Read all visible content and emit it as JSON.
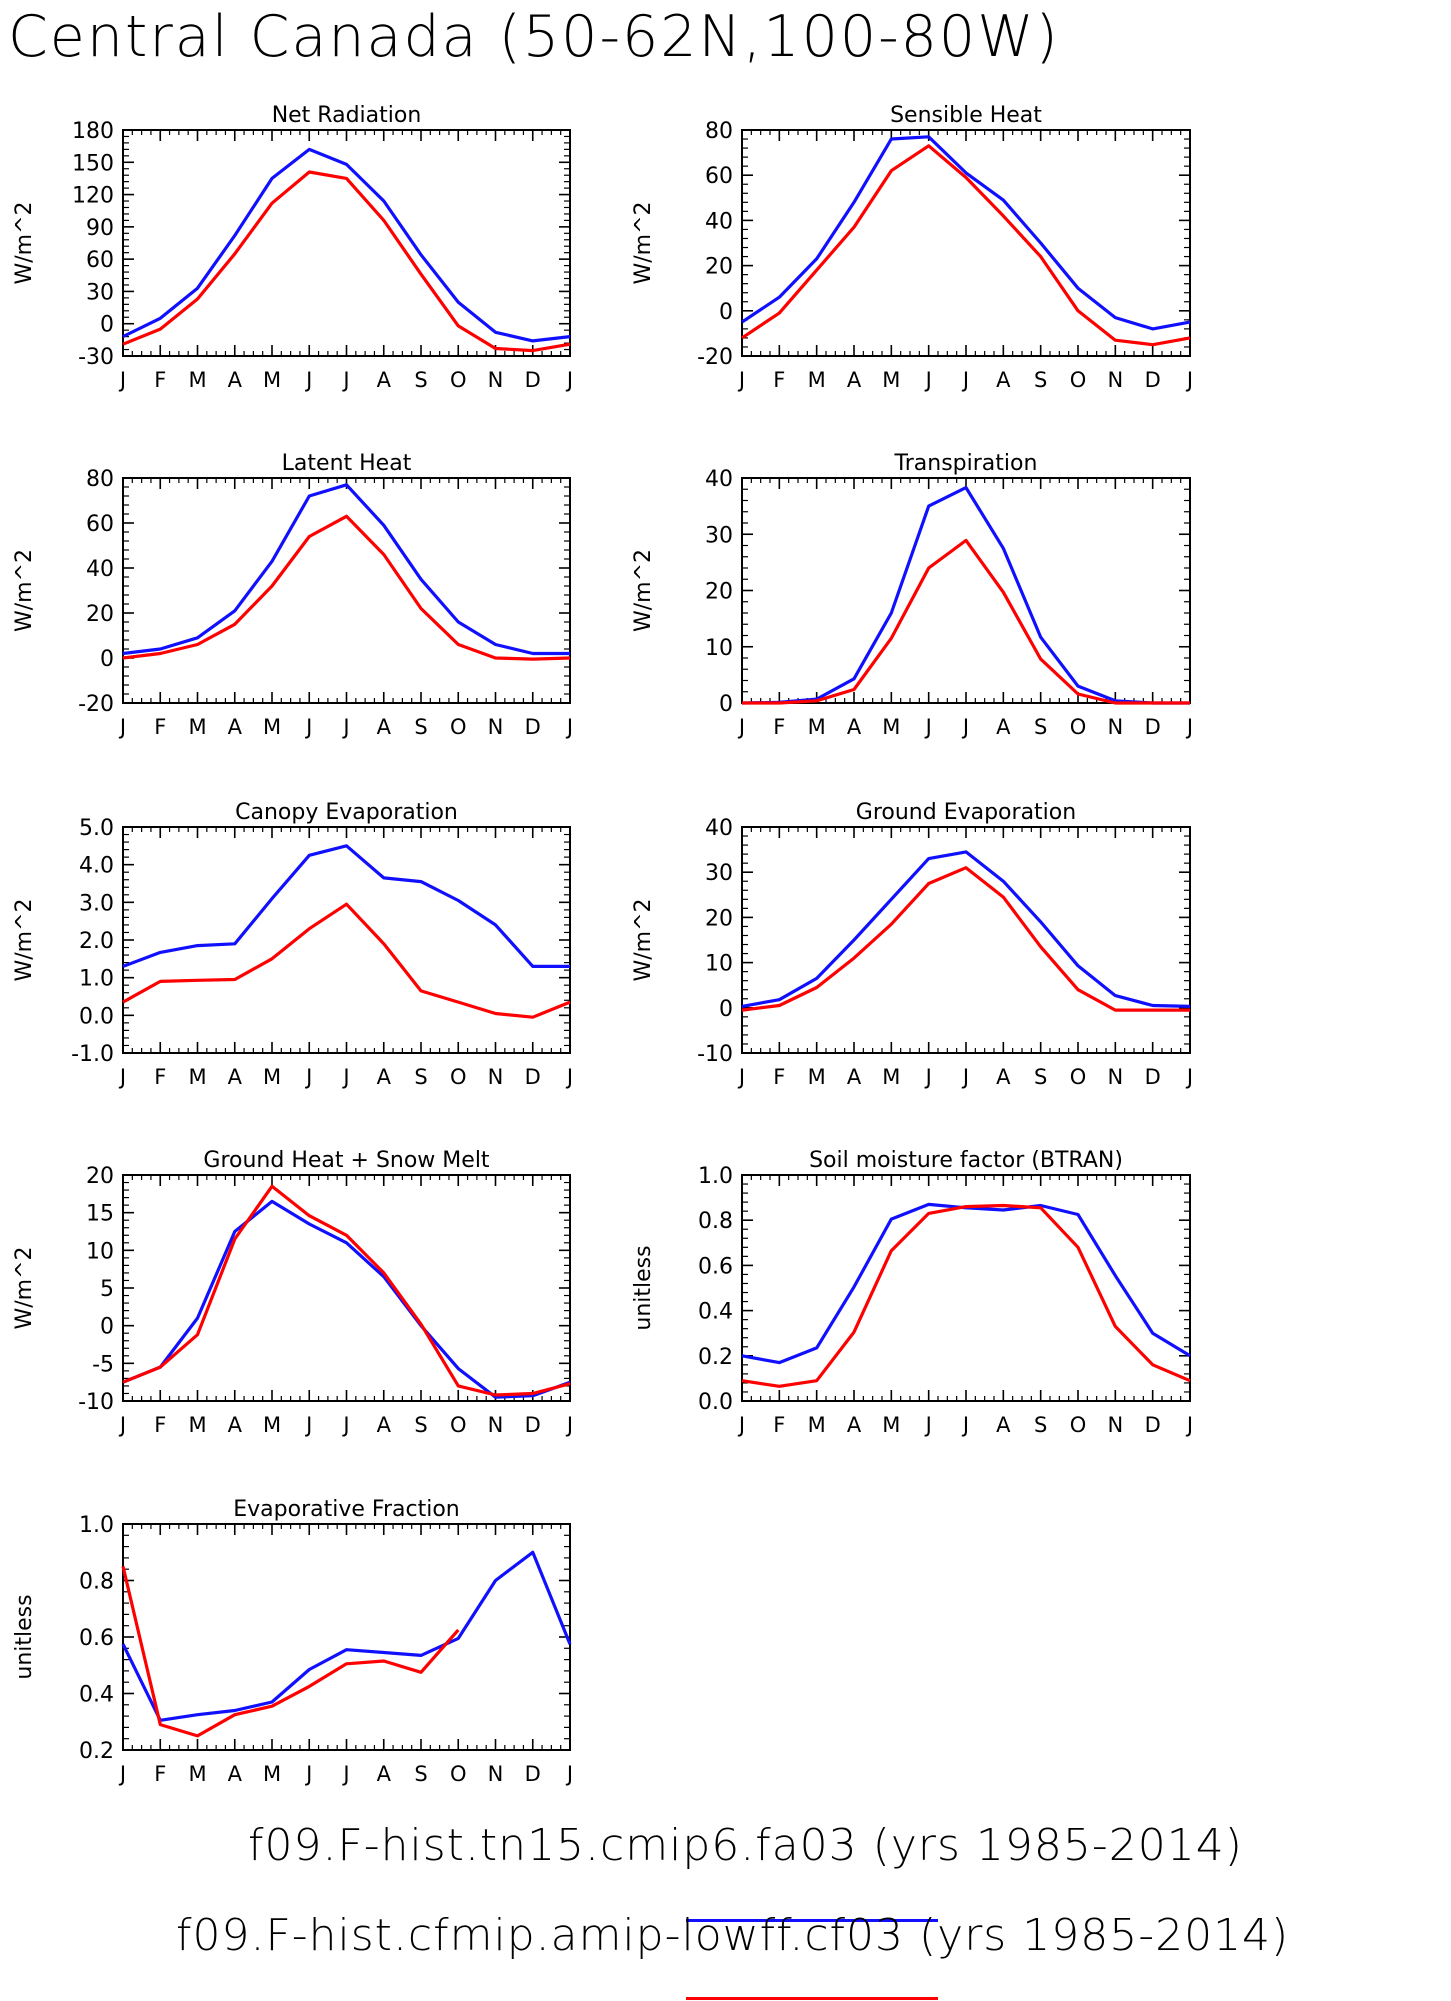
{
  "title": "Central Canada (50-62N,100-80W)",
  "months": [
    "J",
    "F",
    "M",
    "A",
    "M",
    "J",
    "J",
    "A",
    "S",
    "O",
    "N",
    "D",
    "J"
  ],
  "series_colors": {
    "a": "#1010ff",
    "b": "#ff0000"
  },
  "legend": [
    {
      "label": "f09.F-hist.tn15.cmip6.fa03 (yrs 1985-2014)",
      "color": "#1010ff"
    },
    {
      "label": "f09.F-hist.cfmip.amip-lowff.cf03 (yrs 1985-2014)",
      "color": "#ff0000"
    }
  ],
  "chart_data": [
    {
      "type": "line",
      "title": "Net Radiation",
      "xlabel": "",
      "ylabel": "W/m^2",
      "ylim": [
        -30,
        180
      ],
      "yticks": [
        -30,
        0,
        30,
        60,
        90,
        120,
        150,
        180
      ],
      "ytick_labels": [
        "-30",
        "0",
        "30",
        "60",
        "90",
        "120",
        "150",
        "180"
      ],
      "series": [
        {
          "values": [
            -12,
            5,
            33,
            82,
            135,
            162,
            148,
            114,
            64,
            20,
            -8,
            -16,
            -12
          ]
        },
        {
          "values": [
            -19,
            -5,
            23,
            65,
            112,
            141,
            135,
            96,
            46,
            -2,
            -23,
            -25,
            -19
          ]
        }
      ]
    },
    {
      "type": "line",
      "title": "Sensible Heat",
      "xlabel": "",
      "ylabel": "W/m^2",
      "ylim": [
        -20,
        80
      ],
      "yticks": [
        -20,
        0,
        20,
        40,
        60,
        80
      ],
      "ytick_labels": [
        "-20",
        "0",
        "20",
        "40",
        "60",
        "80"
      ],
      "series": [
        {
          "values": [
            -5,
            6,
            23,
            48,
            76,
            77,
            61,
            49,
            30,
            10,
            -3,
            -8,
            -5
          ]
        },
        {
          "values": [
            -12,
            -1,
            18,
            37,
            62,
            73,
            59,
            42,
            24,
            0,
            -13,
            -15,
            -12
          ]
        }
      ]
    },
    {
      "type": "line",
      "title": "Latent Heat",
      "xlabel": "",
      "ylabel": "W/m^2",
      "ylim": [
        -20,
        80
      ],
      "yticks": [
        -20,
        0,
        20,
        40,
        60,
        80
      ],
      "ytick_labels": [
        "-20",
        "0",
        "20",
        "40",
        "60",
        "80"
      ],
      "series": [
        {
          "values": [
            2,
            4,
            9,
            21,
            43,
            72,
            77,
            59,
            35,
            16,
            6,
            2,
            2
          ]
        },
        {
          "values": [
            0,
            2,
            6,
            15,
            32,
            54,
            63,
            46,
            22,
            6,
            0,
            -0.5,
            0
          ]
        }
      ]
    },
    {
      "type": "line",
      "title": "Transpiration",
      "xlabel": "",
      "ylabel": "W/m^2",
      "ylim": [
        0,
        40
      ],
      "yticks": [
        0,
        10,
        20,
        30,
        40
      ],
      "ytick_labels": [
        "0",
        "10",
        "20",
        "30",
        "40"
      ],
      "series": [
        {
          "values": [
            0,
            0.1,
            0.7,
            4.3,
            16,
            35,
            38.3,
            27.5,
            11.7,
            3,
            0.4,
            0,
            0
          ]
        },
        {
          "values": [
            0,
            0,
            0.4,
            2.4,
            11.5,
            24,
            28.9,
            19.7,
            7.8,
            1.6,
            0,
            0,
            0
          ]
        }
      ]
    },
    {
      "type": "line",
      "title": "Canopy Evaporation",
      "xlabel": "",
      "ylabel": "W/m^2",
      "ylim": [
        -1,
        5
      ],
      "yticks": [
        -1,
        0,
        1,
        2,
        3,
        4,
        5
      ],
      "ytick_labels": [
        "-1.0",
        "0.0",
        "1.0",
        "2.0",
        "3.0",
        "4.0",
        "5.0"
      ],
      "series": [
        {
          "values": [
            1.3,
            1.67,
            1.85,
            1.9,
            3.1,
            4.25,
            4.5,
            3.65,
            3.55,
            3.05,
            2.4,
            1.3,
            1.3
          ]
        },
        {
          "values": [
            0.35,
            0.9,
            0.93,
            0.95,
            1.5,
            2.3,
            2.95,
            1.9,
            0.65,
            0.35,
            0.05,
            -0.05,
            0.35
          ]
        }
      ]
    },
    {
      "type": "line",
      "title": "Ground Evaporation",
      "xlabel": "",
      "ylabel": "W/m^2",
      "ylim": [
        -10,
        40
      ],
      "yticks": [
        -10,
        0,
        10,
        20,
        30,
        40
      ],
      "ytick_labels": [
        "-10",
        "0",
        "10",
        "20",
        "30",
        "40"
      ],
      "series": [
        {
          "values": [
            0.3,
            1.8,
            6.5,
            15,
            24,
            33,
            34.5,
            28,
            19,
            9.3,
            2.7,
            0.5,
            0.3
          ]
        },
        {
          "values": [
            -0.5,
            0.5,
            4.5,
            11,
            18.5,
            27.5,
            31,
            24.5,
            13.5,
            4,
            -0.5,
            -0.5,
            -0.5
          ]
        }
      ]
    },
    {
      "type": "line",
      "title": "Ground Heat + Snow Melt",
      "xlabel": "",
      "ylabel": "W/m^2",
      "ylim": [
        -10,
        20
      ],
      "yticks": [
        -10,
        -5,
        0,
        5,
        10,
        15,
        20
      ],
      "ytick_labels": [
        "-10",
        "-5",
        "0",
        "5",
        "10",
        "15",
        "20"
      ],
      "series": [
        {
          "values": [
            -7.5,
            -5.5,
            1,
            12.5,
            16.5,
            13.5,
            11,
            6.5,
            0,
            -5.7,
            -9.5,
            -9.3,
            -7.5
          ]
        },
        {
          "values": [
            -7.5,
            -5.5,
            -1.2,
            11.5,
            18.5,
            14.6,
            12,
            7,
            0.2,
            -8,
            -9.2,
            -9,
            -7.7
          ]
        }
      ]
    },
    {
      "type": "line",
      "title": "Soil moisture factor (BTRAN)",
      "xlabel": "",
      "ylabel": "unitless",
      "ylim": [
        0,
        1
      ],
      "yticks": [
        0,
        0.2,
        0.4,
        0.6,
        0.8,
        1.0
      ],
      "ytick_labels": [
        "0.0",
        "0.2",
        "0.4",
        "0.6",
        "0.8",
        "1.0"
      ],
      "series": [
        {
          "values": [
            0.2,
            0.17,
            0.235,
            0.505,
            0.805,
            0.87,
            0.855,
            0.845,
            0.865,
            0.825,
            0.555,
            0.3,
            0.2
          ]
        },
        {
          "values": [
            0.09,
            0.065,
            0.09,
            0.305,
            0.665,
            0.83,
            0.86,
            0.865,
            0.855,
            0.68,
            0.33,
            0.16,
            0.09
          ]
        }
      ]
    },
    {
      "type": "line",
      "title": "Evaporative Fraction",
      "xlabel": "",
      "ylabel": "unitless",
      "ylim": [
        0.2,
        1.0
      ],
      "yticks": [
        0.2,
        0.4,
        0.6,
        0.8,
        1.0
      ],
      "ytick_labels": [
        "0.2",
        "0.4",
        "0.6",
        "0.8",
        "1.0"
      ],
      "series": [
        {
          "values": [
            0.575,
            0.305,
            0.325,
            0.34,
            0.37,
            0.485,
            0.555,
            0.545,
            0.535,
            0.595,
            0.8,
            0.9,
            0.575
          ]
        },
        {
          "values": [
            0.85,
            0.29,
            0.25,
            0.325,
            0.355,
            0.425,
            0.505,
            0.515,
            0.475,
            0.625,
            null,
            null,
            null
          ]
        }
      ]
    }
  ]
}
